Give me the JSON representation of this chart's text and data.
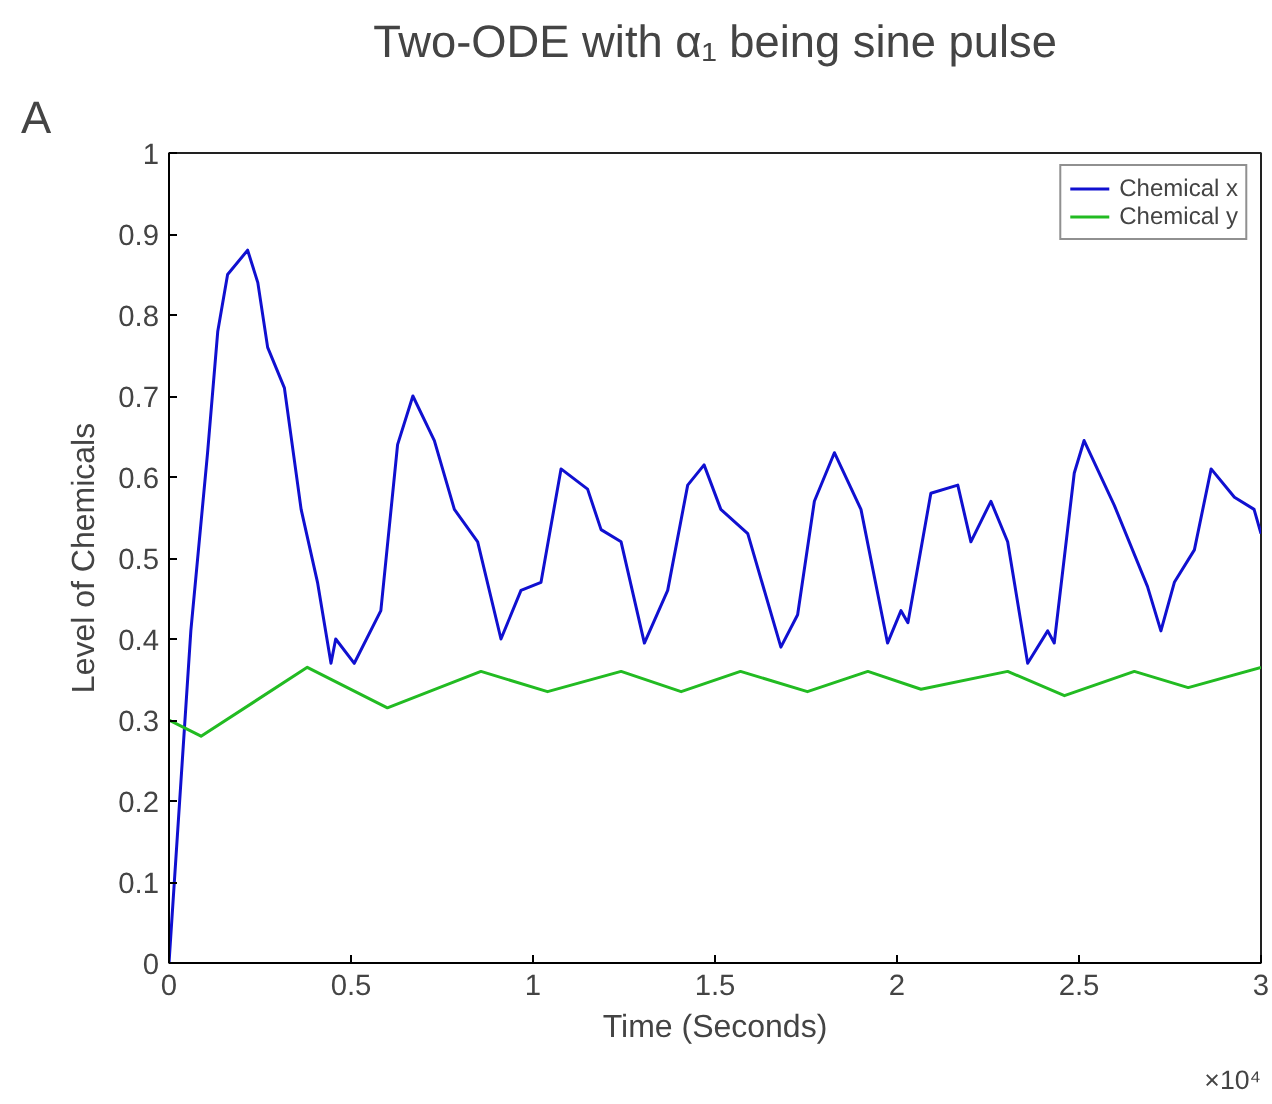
{
  "chart_data": {
    "type": "line",
    "title": "Two-ODE with α₁ being sine pulse",
    "xlabel": "Time (Seconds)",
    "ylabel": "Level of Chemicals",
    "annotations": [
      "A",
      "×10⁴"
    ],
    "xlim": [
      0,
      3
    ],
    "ylim": [
      0,
      1
    ],
    "xticks": [
      0,
      0.5,
      1,
      1.5,
      2,
      2.5,
      3
    ],
    "yticks": [
      0,
      0.1,
      0.2,
      0.3,
      0.4,
      0.5,
      0.6,
      0.7,
      0.8,
      0.9,
      1
    ],
    "grid": false,
    "legend": "top right",
    "line_style": "solid",
    "marker": "none",
    "series": [
      {
        "name": "Chemical x",
        "color": "#1010d0",
        "x": [
          0,
          0.06,
          0.106,
          0.134,
          0.161,
          0.216,
          0.244,
          0.271,
          0.317,
          0.363,
          0.408,
          0.445,
          0.458,
          0.509,
          0.582,
          0.628,
          0.67,
          0.729,
          0.784,
          0.848,
          0.912,
          0.967,
          1.022,
          1.077,
          1.15,
          1.187,
          1.242,
          1.306,
          1.37,
          1.425,
          1.47,
          1.516,
          1.59,
          1.681,
          1.727,
          1.773,
          1.828,
          1.901,
          1.974,
          2.011,
          2.03,
          2.093,
          2.167,
          2.203,
          2.258,
          2.304,
          2.359,
          2.414,
          2.432,
          2.487,
          2.514,
          2.597,
          2.688,
          2.725,
          2.762,
          2.817,
          2.863,
          2.927,
          2.981,
          3
        ],
        "values": [
          0,
          0.41,
          0.63,
          0.78,
          0.85,
          0.88,
          0.84,
          0.76,
          0.71,
          0.56,
          0.47,
          0.37,
          0.4,
          0.37,
          0.435,
          0.64,
          0.7,
          0.645,
          0.56,
          0.52,
          0.4,
          0.46,
          0.47,
          0.61,
          0.585,
          0.535,
          0.52,
          0.395,
          0.46,
          0.59,
          0.615,
          0.56,
          0.53,
          0.39,
          0.43,
          0.57,
          0.63,
          0.56,
          0.395,
          0.435,
          0.42,
          0.58,
          0.59,
          0.52,
          0.57,
          0.52,
          0.37,
          0.41,
          0.395,
          0.605,
          0.645,
          0.565,
          0.465,
          0.41,
          0.47,
          0.51,
          0.61,
          0.575,
          0.56,
          0.53
        ]
      },
      {
        "name": "Chemical y",
        "color": "#22bb22",
        "x": [
          0,
          0.088,
          0.38,
          0.6,
          0.857,
          1.04,
          1.242,
          1.407,
          1.57,
          1.754,
          1.92,
          2.066,
          2.304,
          2.46,
          2.652,
          2.8,
          3
        ],
        "values": [
          0.3,
          0.28,
          0.365,
          0.315,
          0.36,
          0.335,
          0.36,
          0.335,
          0.36,
          0.335,
          0.36,
          0.338,
          0.36,
          0.33,
          0.36,
          0.34,
          0.365
        ]
      }
    ]
  }
}
